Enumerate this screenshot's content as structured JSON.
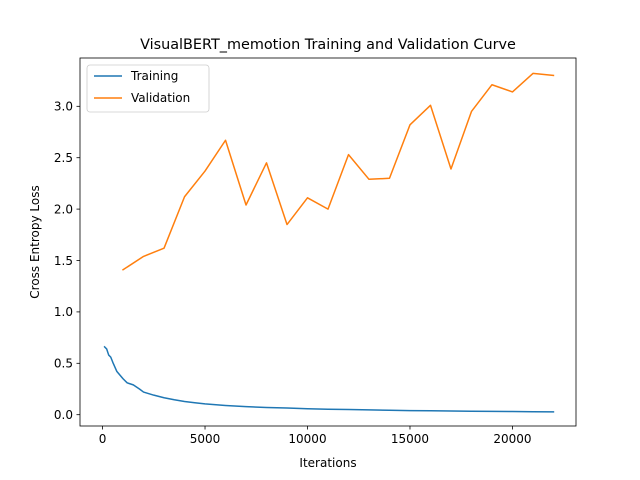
{
  "chart_data": {
    "type": "line",
    "title": "VisualBERT_memotion Training and Validation Curve",
    "xlabel": "Iterations",
    "ylabel": "Cross Entropy Loss",
    "xlim": [
      -1100,
      23100
    ],
    "ylim": [
      -0.11,
      3.47
    ],
    "xticks": [
      0,
      5000,
      10000,
      15000,
      20000
    ],
    "yticks": [
      0.0,
      0.5,
      1.0,
      1.5,
      2.0,
      2.5,
      3.0
    ],
    "xtick_labels": [
      "0",
      "5000",
      "10000",
      "15000",
      "20000"
    ],
    "ytick_labels": [
      "0.0",
      "0.5",
      "1.0",
      "1.5",
      "2.0",
      "2.5",
      "3.0"
    ],
    "grid": false,
    "legend_position": "top-left",
    "series": [
      {
        "name": "Training",
        "color": "#1f77b4",
        "x": [
          100,
          200,
          300,
          400,
          500,
          700,
          1000,
          1200,
          1500,
          1800,
          2000,
          2500,
          3000,
          3500,
          4000,
          4500,
          5000,
          6000,
          7000,
          8000,
          9000,
          10000,
          11000,
          12000,
          13000,
          14000,
          15000,
          16000,
          17000,
          18000,
          19000,
          20000,
          21000,
          22000
        ],
        "y": [
          0.66,
          0.64,
          0.58,
          0.56,
          0.51,
          0.42,
          0.35,
          0.31,
          0.29,
          0.25,
          0.22,
          0.19,
          0.165,
          0.145,
          0.128,
          0.116,
          0.105,
          0.09,
          0.078,
          0.07,
          0.065,
          0.058,
          0.053,
          0.05,
          0.047,
          0.043,
          0.04,
          0.038,
          0.036,
          0.034,
          0.032,
          0.031,
          0.029,
          0.028
        ]
      },
      {
        "name": "Validation",
        "color": "#ff7f0e",
        "x": [
          1000,
          2000,
          3000,
          4000,
          5000,
          6000,
          7000,
          8000,
          9000,
          10000,
          11000,
          12000,
          13000,
          14000,
          15000,
          16000,
          17000,
          18000,
          19000,
          20000,
          21000,
          22000
        ],
        "y": [
          1.41,
          1.54,
          1.62,
          2.12,
          2.37,
          2.67,
          2.04,
          2.45,
          1.85,
          2.11,
          2.0,
          2.53,
          2.29,
          2.3,
          2.82,
          3.01,
          2.39,
          2.95,
          3.21,
          3.14,
          3.32,
          3.3
        ]
      }
    ]
  }
}
